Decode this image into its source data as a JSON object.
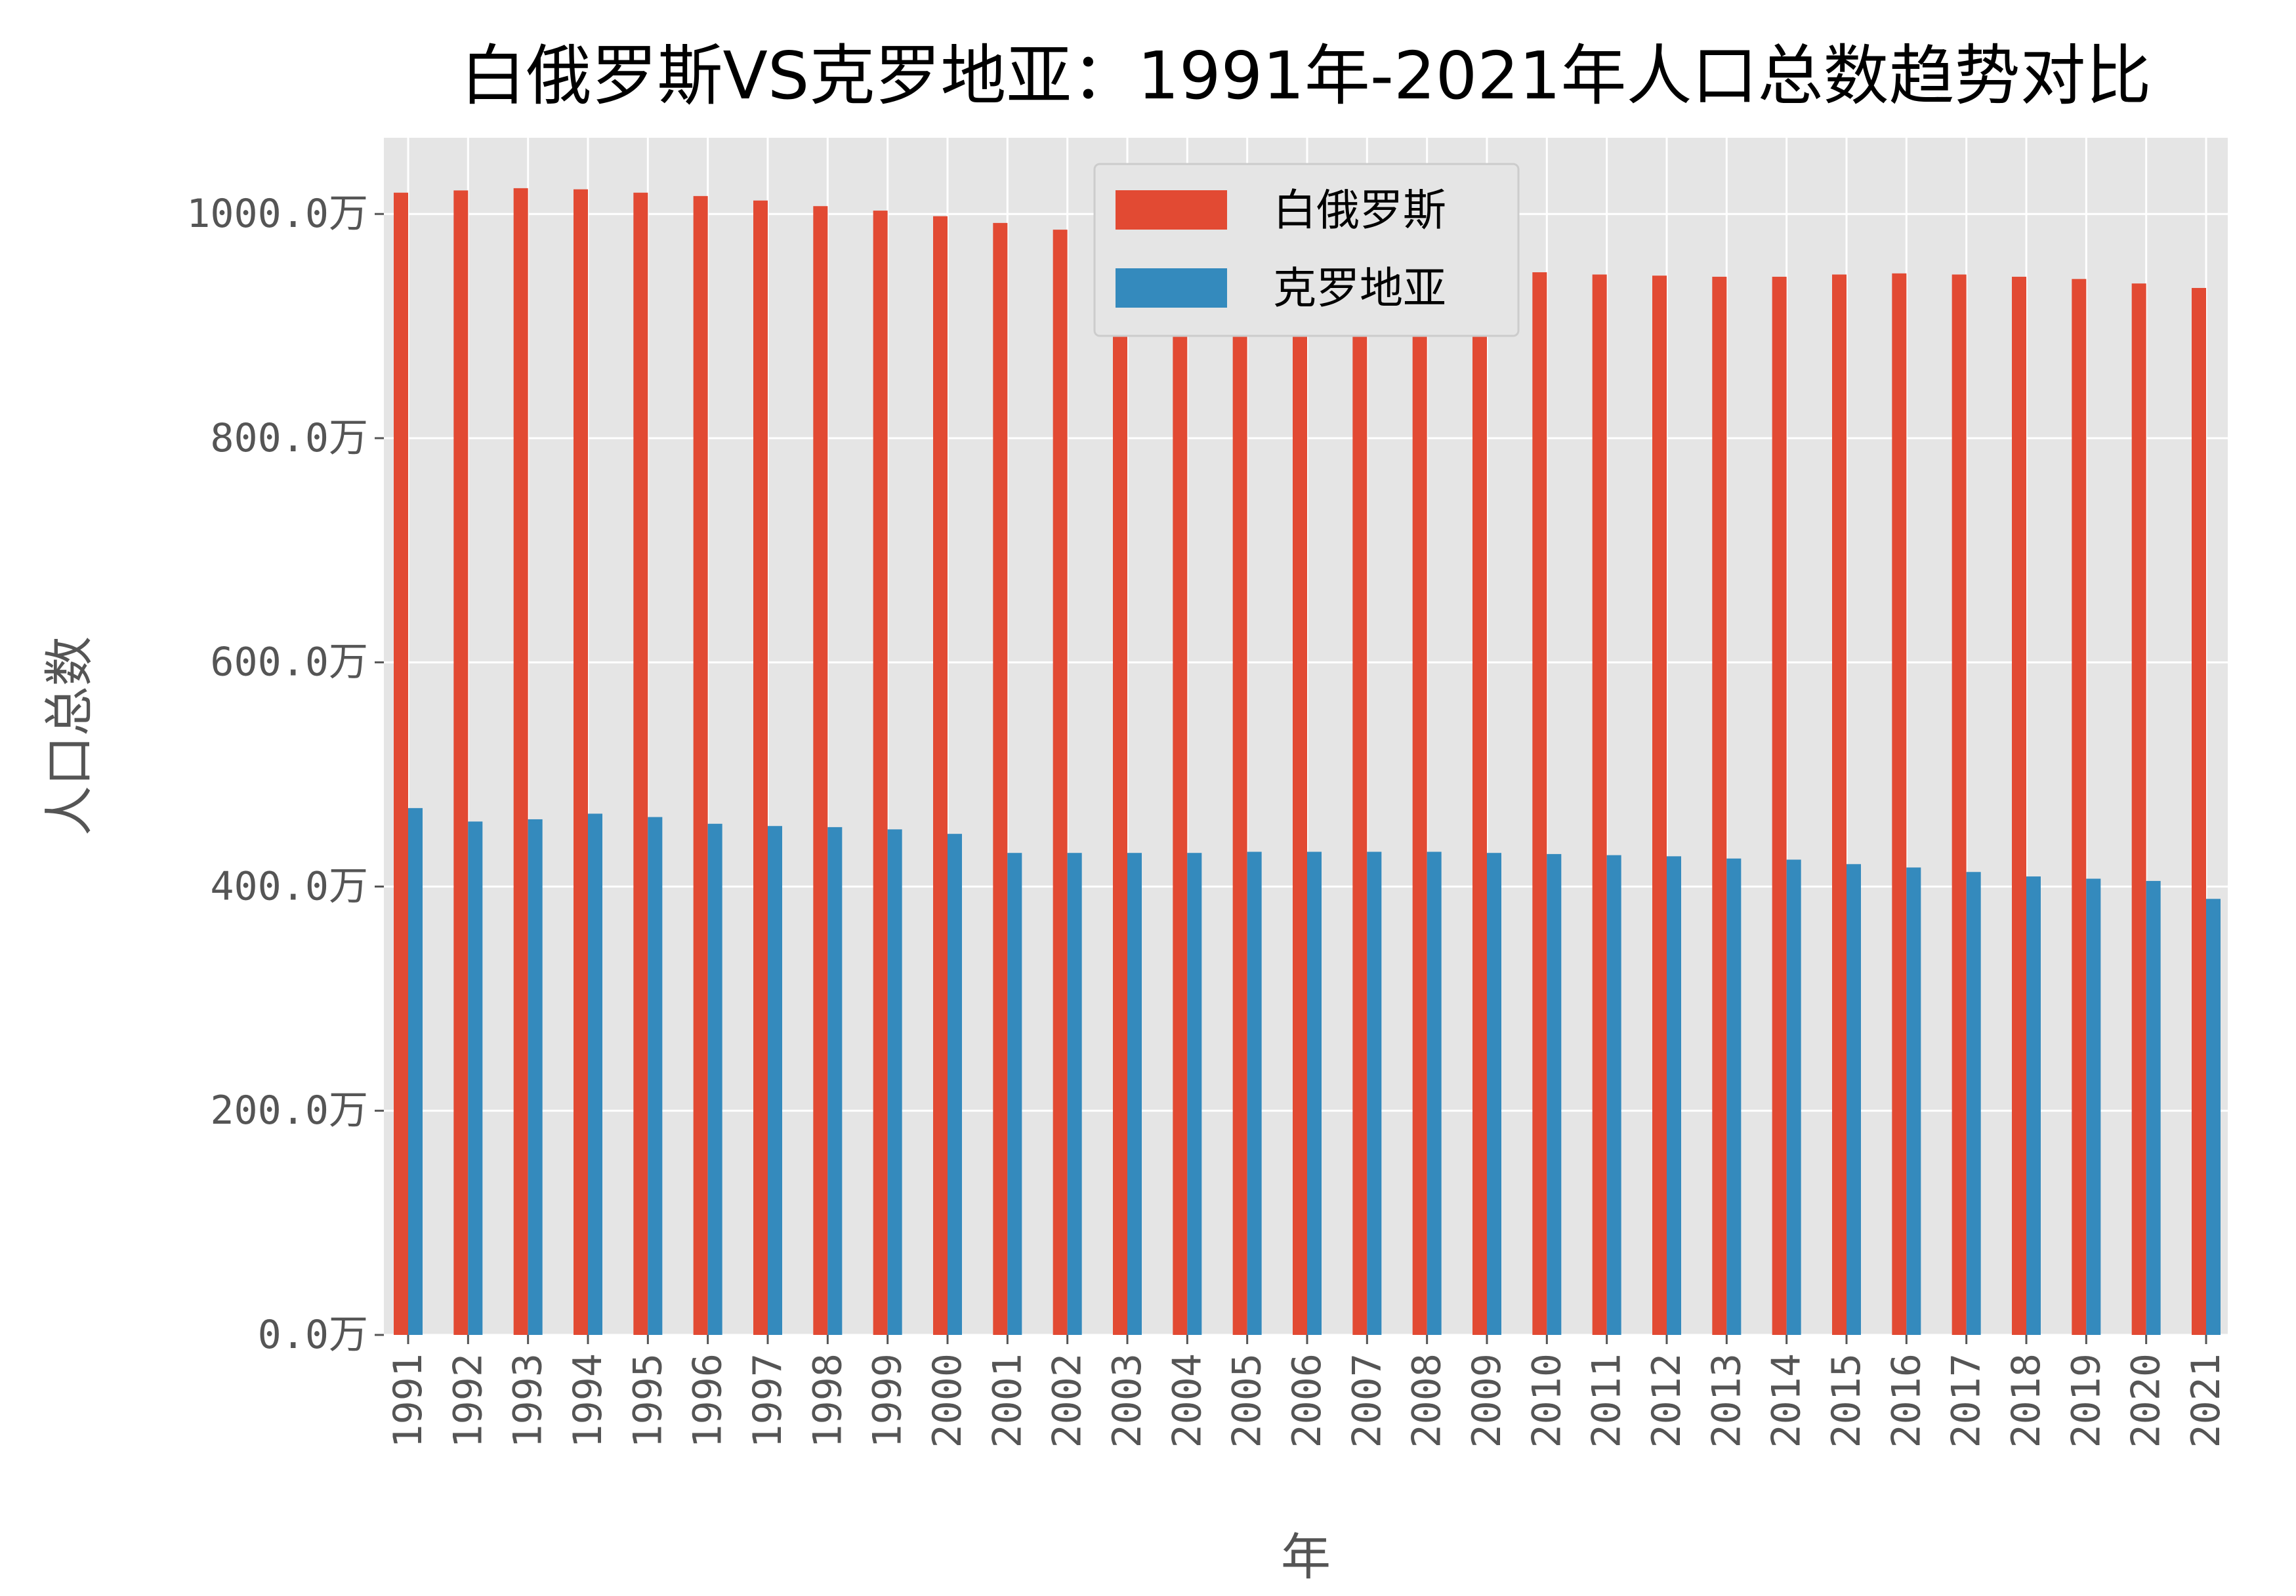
{
  "chart_data": {
    "type": "bar",
    "title": "白俄罗斯VS克罗地亚：1991年-2021年人口总数趋势对比",
    "xlabel": "年",
    "ylabel": "人口总数",
    "categories": [
      "1991",
      "1992",
      "1993",
      "1994",
      "1995",
      "1996",
      "1997",
      "1998",
      "1999",
      "2000",
      "2001",
      "2002",
      "2003",
      "2004",
      "2005",
      "2006",
      "2007",
      "2008",
      "2009",
      "2010",
      "2011",
      "2012",
      "2013",
      "2014",
      "2015",
      "2016",
      "2017",
      "2018",
      "2019",
      "2020",
      "2021"
    ],
    "series": [
      {
        "name": "白俄罗斯",
        "color": "#E24A33",
        "values": [
          1019,
          1021,
          1023,
          1022,
          1019,
          1016,
          1012,
          1007,
          1003,
          998,
          992,
          986,
          979,
          973,
          966,
          960,
          955,
          951,
          947,
          948,
          946,
          945,
          944,
          944,
          946,
          947,
          946,
          944,
          942,
          938,
          934
        ]
      },
      {
        "name": "克罗地亚",
        "color": "#348ABD",
        "values": [
          470,
          458,
          460,
          465,
          462,
          456,
          454,
          453,
          451,
          447,
          430,
          430,
          430,
          430,
          431,
          431,
          431,
          431,
          430,
          429,
          428,
          427,
          425,
          424,
          420,
          417,
          413,
          409,
          407,
          405,
          389
        ]
      }
    ],
    "ylim": [
      0,
      1068
    ],
    "yticks": [
      0,
      200,
      400,
      600,
      800,
      1000
    ],
    "ytick_labels": [
      "0.0万",
      "200.0万",
      "400.0万",
      "600.0万",
      "800.0万",
      "1000.0万"
    ],
    "grid": true,
    "legend_position": "top-center"
  }
}
